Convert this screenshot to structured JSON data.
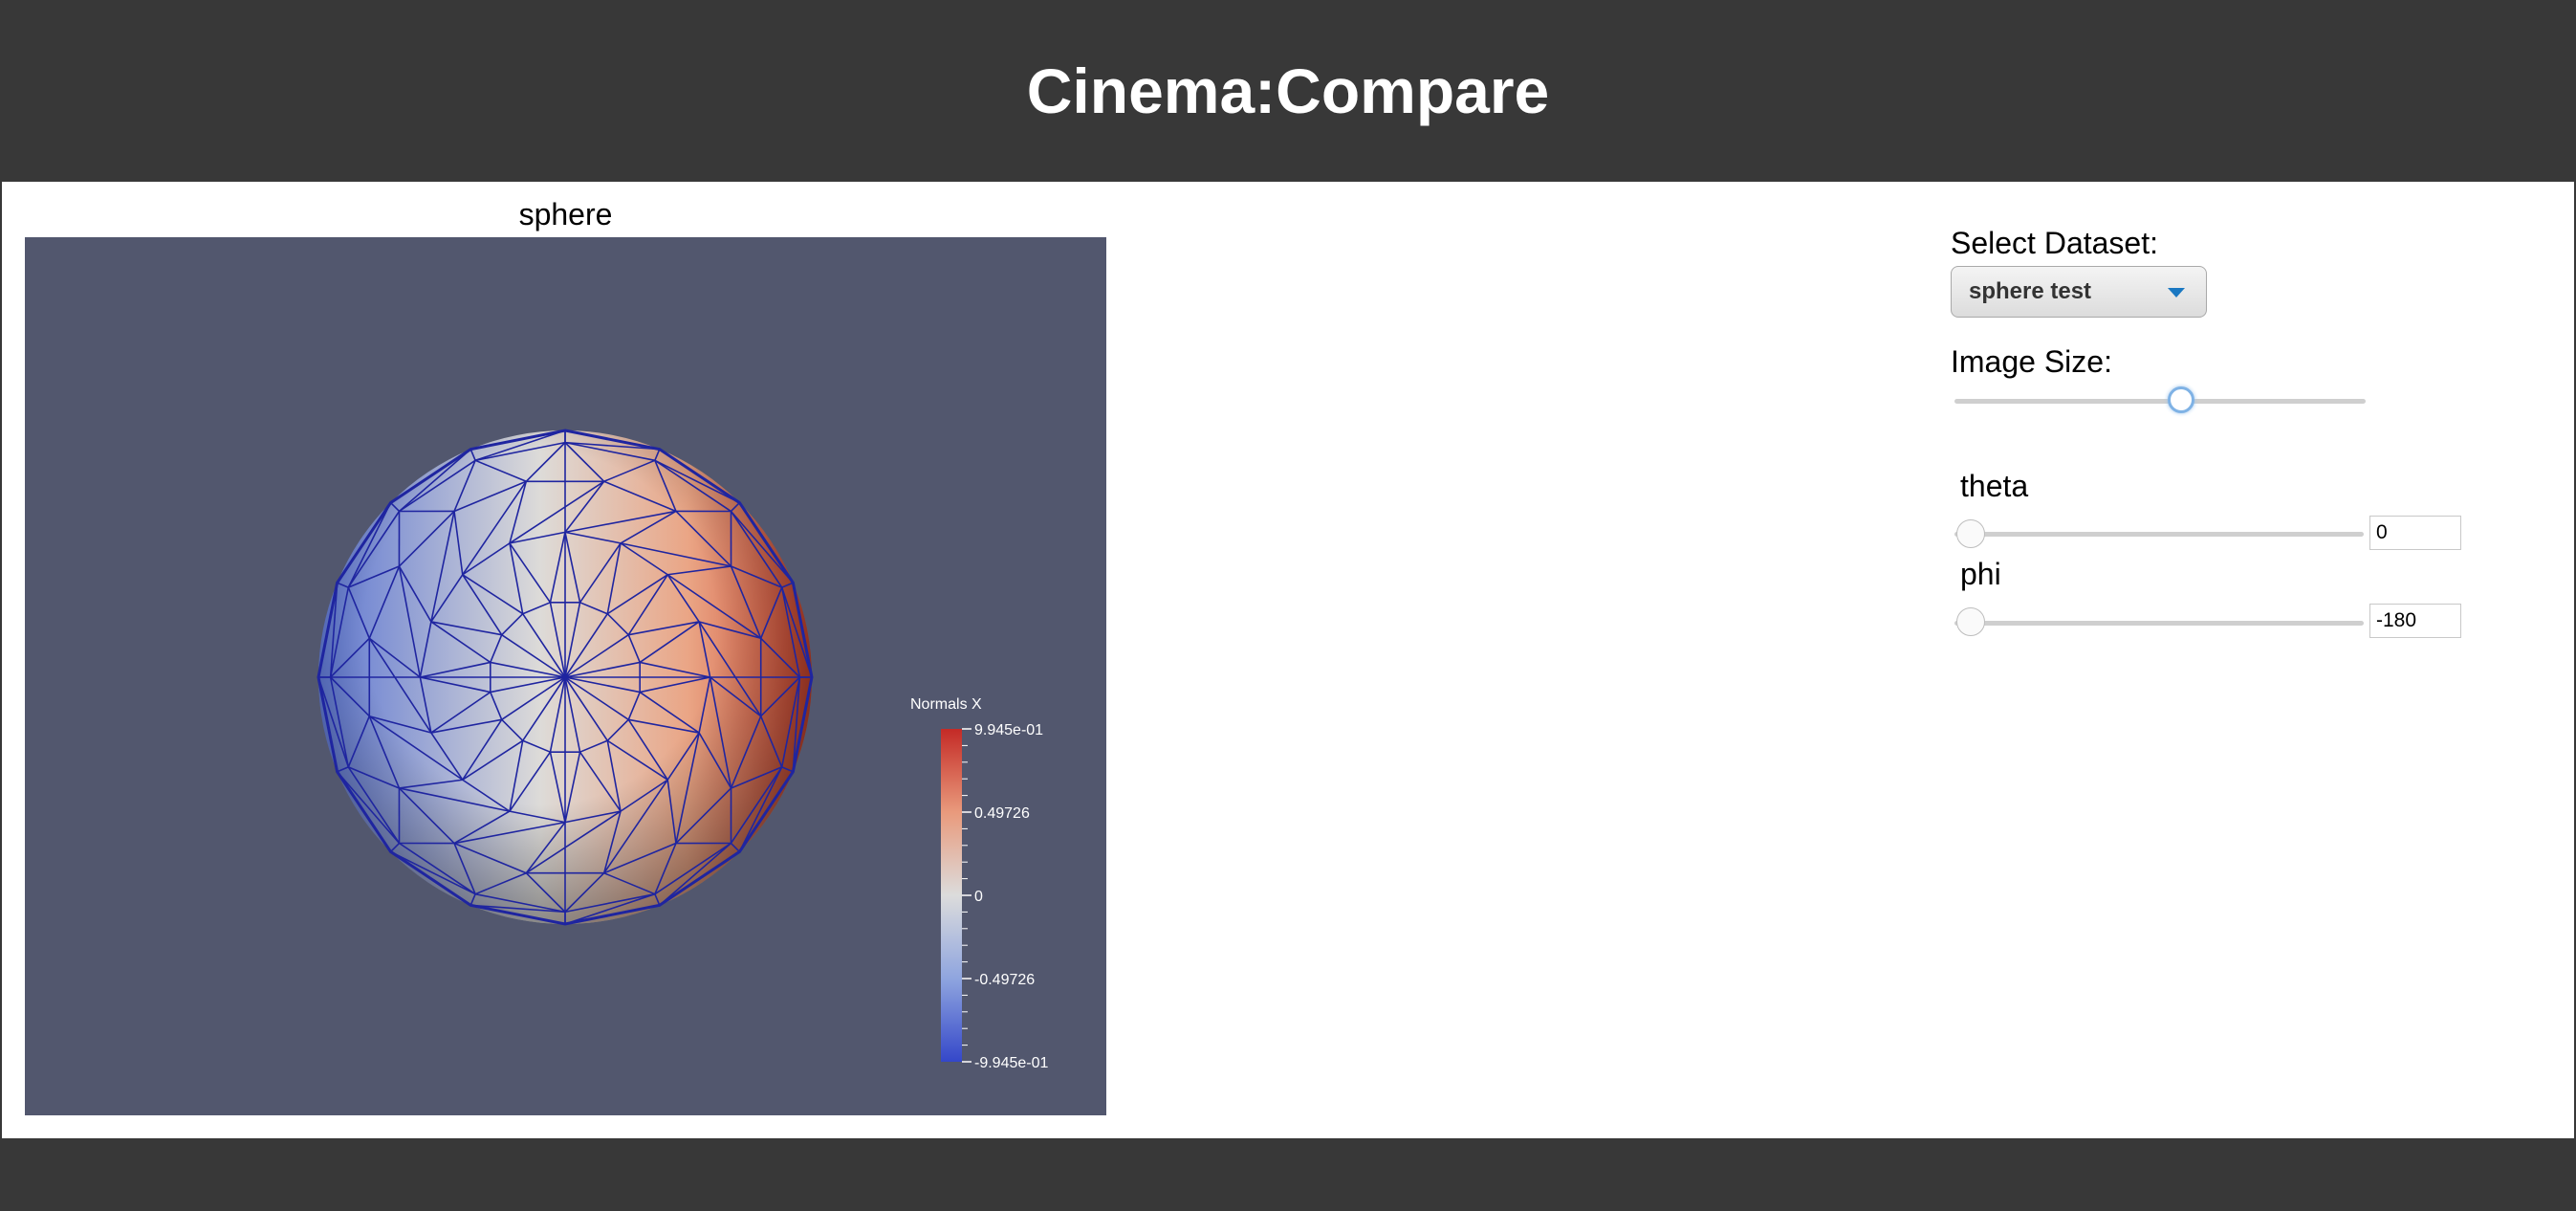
{
  "header": {
    "title": "Cinema:Compare"
  },
  "viewer": {
    "label": "sphere",
    "legend": {
      "title": "Normals X",
      "ticks": [
        "9.945e-01",
        "0.49726",
        "0",
        "-0.49726",
        "-9.945e-01"
      ]
    },
    "colors": {
      "background": "#52576e",
      "mesh": "#1f25a0",
      "positive": "#c4322f",
      "neutral": "#dcdcdc",
      "negative": "#3b56d0"
    }
  },
  "controls": {
    "dataset_label": "Select Dataset:",
    "dataset_value": "sphere test",
    "dataset_arrow_icon": "chevron-down-icon",
    "image_size_label": "Image Size:",
    "image_size_fraction": 0.55,
    "params": [
      {
        "name": "theta",
        "value": "0",
        "fraction": 0.0
      },
      {
        "name": "phi",
        "value": "-180",
        "fraction": 0.0
      }
    ]
  }
}
